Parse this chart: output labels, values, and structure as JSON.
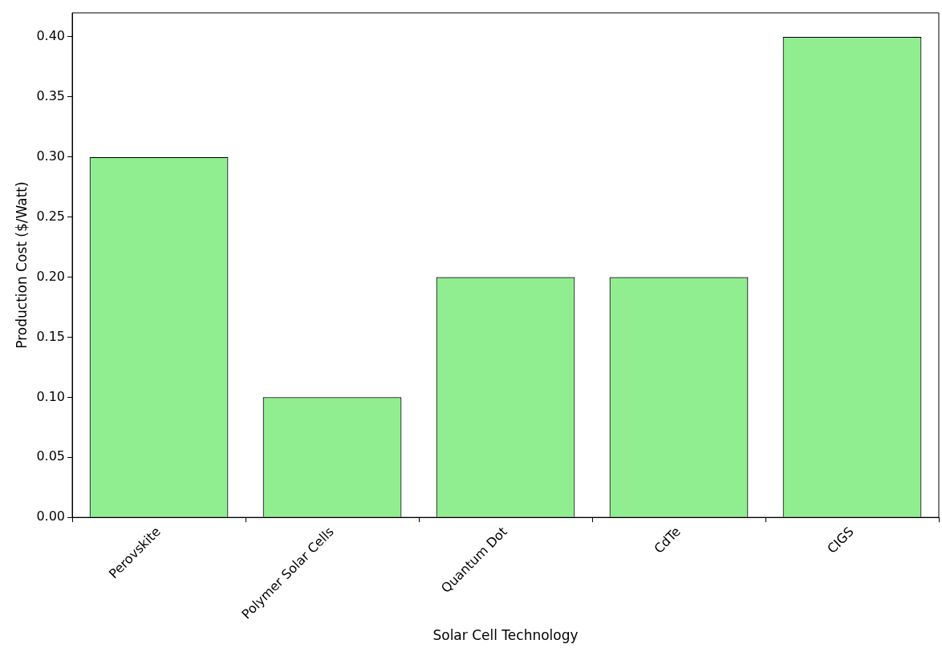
{
  "chart_data": {
    "type": "bar",
    "xlabel": "Solar Cell Technology",
    "ylabel": "Production Cost ($/Watt)",
    "categories": [
      "Perovskite",
      "Polymer Solar Cells",
      "Quantum Dot",
      "CdTe",
      "CIGS"
    ],
    "values": [
      0.3,
      0.1,
      0.2,
      0.2,
      0.4
    ],
    "color": "#90ee90",
    "ylim": [
      0,
      0.42
    ],
    "yticks": [
      {
        "value": 0,
        "label": "0.00"
      },
      {
        "value": 0.05,
        "label": "0.05"
      },
      {
        "value": 0.1,
        "label": "0.10"
      },
      {
        "value": 0.15,
        "label": "0.15"
      },
      {
        "value": 0.2,
        "label": "0.20"
      },
      {
        "value": 0.25,
        "label": "0.25"
      },
      {
        "value": 0.3,
        "label": "0.30"
      },
      {
        "value": 0.35,
        "label": "0.35"
      },
      {
        "value": 0.4,
        "label": "0.40"
      }
    ],
    "grid": false
  }
}
